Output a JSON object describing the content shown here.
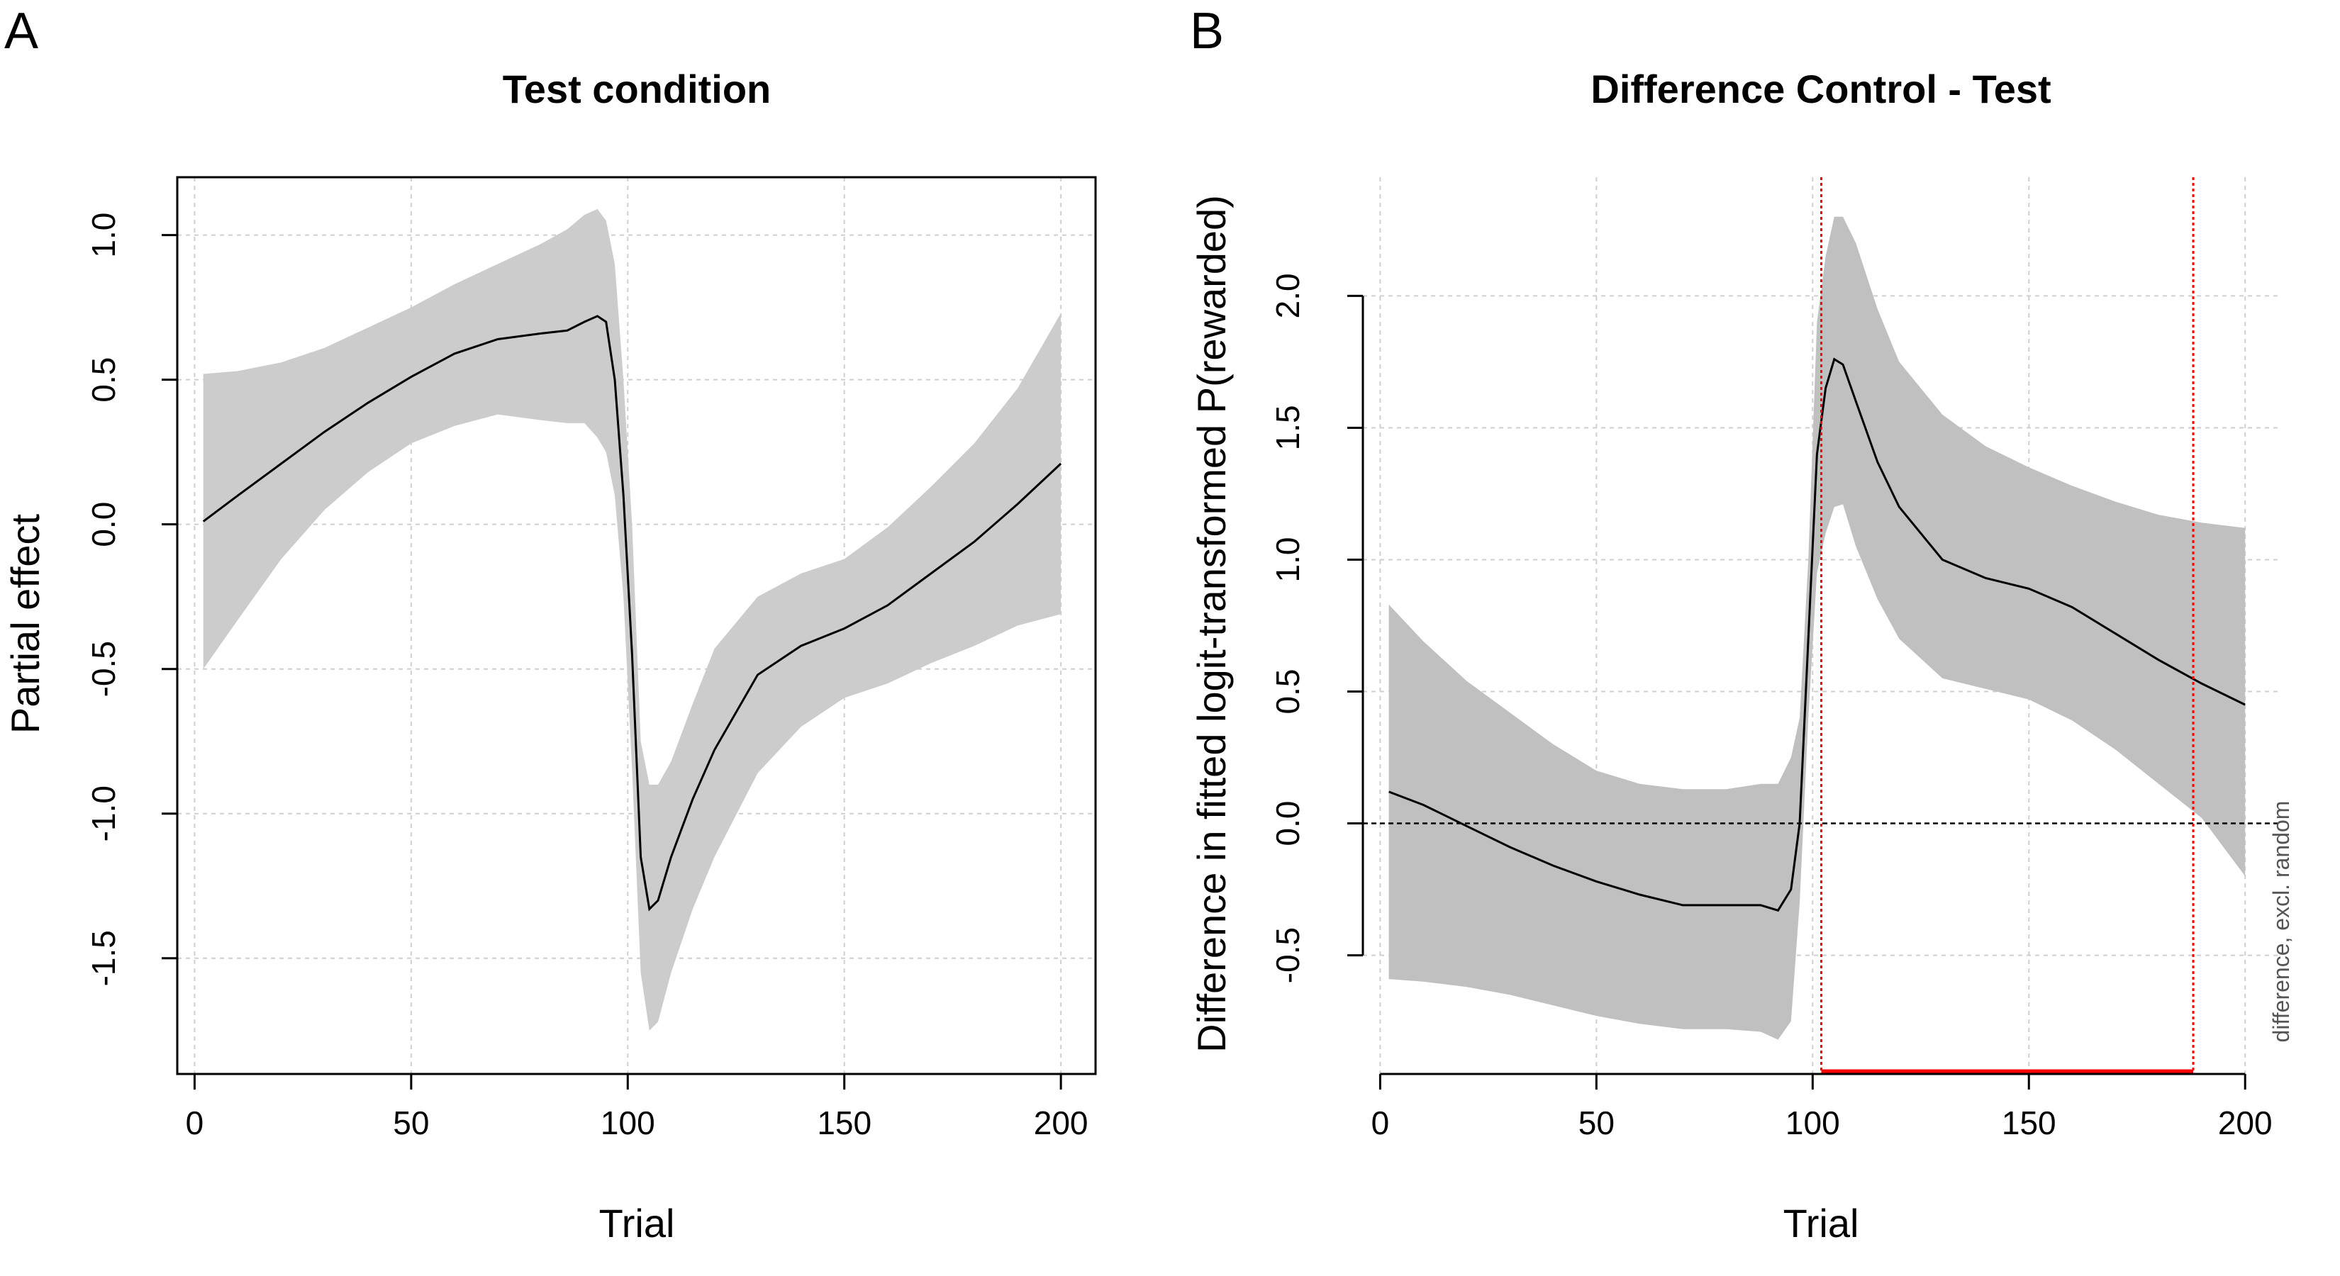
{
  "chart_data": [
    {
      "panel_letter": "A",
      "type": "line",
      "title": "Test condition",
      "xlabel": "Trial",
      "ylabel": "Partial effect",
      "xlim": [
        -4,
        208
      ],
      "ylim": [
        -1.9,
        1.2
      ],
      "xticks": [
        0,
        50,
        100,
        150,
        200
      ],
      "yticks": [
        -1.5,
        -1.0,
        -0.5,
        0.0,
        0.5,
        1.0
      ],
      "ytick_labels": [
        "-1.5",
        "-1.0",
        "-0.5",
        "0.0",
        "0.5",
        "1.0"
      ],
      "grid": true,
      "box": true,
      "band_color": "#cccccc",
      "line_color": "#000000",
      "x": [
        2,
        10,
        20,
        30,
        40,
        50,
        60,
        70,
        80,
        86,
        90,
        93,
        95,
        97,
        99,
        101,
        103,
        105,
        107,
        110,
        115,
        120,
        130,
        140,
        150,
        160,
        170,
        180,
        190,
        200
      ],
      "fit": [
        0.01,
        0.1,
        0.21,
        0.32,
        0.42,
        0.51,
        0.59,
        0.64,
        0.66,
        0.67,
        0.7,
        0.72,
        0.7,
        0.5,
        0.1,
        -0.45,
        -1.15,
        -1.33,
        -1.3,
        -1.15,
        -0.95,
        -0.78,
        -0.52,
        -0.42,
        -0.36,
        -0.28,
        -0.17,
        -0.06,
        0.07,
        0.21
      ],
      "lower": [
        -0.5,
        -0.33,
        -0.12,
        0.05,
        0.18,
        0.28,
        0.34,
        0.38,
        0.36,
        0.35,
        0.35,
        0.3,
        0.25,
        0.1,
        -0.25,
        -0.85,
        -1.55,
        -1.75,
        -1.72,
        -1.55,
        -1.33,
        -1.15,
        -0.86,
        -0.7,
        -0.6,
        -0.55,
        -0.48,
        -0.42,
        -0.35,
        -0.31
      ],
      "upper": [
        0.52,
        0.53,
        0.56,
        0.61,
        0.68,
        0.75,
        0.83,
        0.9,
        0.97,
        1.02,
        1.07,
        1.09,
        1.05,
        0.9,
        0.5,
        0.0,
        -0.75,
        -0.9,
        -0.9,
        -0.82,
        -0.62,
        -0.43,
        -0.25,
        -0.17,
        -0.12,
        -0.01,
        0.13,
        0.28,
        0.47,
        0.73
      ]
    },
    {
      "panel_letter": "B",
      "type": "line",
      "title": "Difference Control - Test",
      "xlabel": "Trial",
      "ylabel": "Difference in fitted logit-transformed P(rewarded)",
      "side_note": "difference, excl. random",
      "xlim": [
        -4,
        208
      ],
      "ylim": [
        -0.95,
        2.45
      ],
      "xticks": [
        0,
        50,
        100,
        150,
        200
      ],
      "yticks": [
        -0.5,
        0.0,
        0.5,
        1.0,
        1.5,
        2.0
      ],
      "ytick_labels": [
        "-0.5",
        "0.0",
        "0.5",
        "1.0",
        "1.5",
        "2.0"
      ],
      "grid": true,
      "box": false,
      "band_color": "#c0c0c0",
      "line_color": "#000000",
      "zero_line": 0.0,
      "significant_interval": [
        102,
        188
      ],
      "significance_color": "#ff0000",
      "x": [
        2,
        10,
        20,
        30,
        40,
        50,
        60,
        70,
        80,
        88,
        92,
        95,
        97,
        99,
        101,
        103,
        105,
        107,
        110,
        115,
        120,
        130,
        140,
        150,
        160,
        170,
        180,
        190,
        200
      ],
      "fit": [
        0.12,
        0.07,
        -0.01,
        -0.09,
        -0.16,
        -0.22,
        -0.27,
        -0.31,
        -0.31,
        -0.31,
        -0.33,
        -0.25,
        0.0,
        0.7,
        1.4,
        1.65,
        1.76,
        1.74,
        1.6,
        1.37,
        1.2,
        1.0,
        0.93,
        0.89,
        0.82,
        0.72,
        0.62,
        0.53,
        0.45
      ],
      "lower": [
        -0.59,
        -0.6,
        -0.62,
        -0.65,
        -0.69,
        -0.73,
        -0.76,
        -0.78,
        -0.78,
        -0.79,
        -0.82,
        -0.75,
        -0.3,
        0.4,
        0.95,
        1.1,
        1.2,
        1.21,
        1.05,
        0.85,
        0.7,
        0.55,
        0.51,
        0.47,
        0.39,
        0.28,
        0.15,
        0.02,
        -0.2
      ],
      "upper": [
        0.83,
        0.69,
        0.54,
        0.42,
        0.3,
        0.2,
        0.15,
        0.13,
        0.13,
        0.15,
        0.15,
        0.25,
        0.4,
        1.0,
        1.9,
        2.15,
        2.3,
        2.3,
        2.2,
        1.95,
        1.75,
        1.55,
        1.43,
        1.35,
        1.28,
        1.22,
        1.17,
        1.14,
        1.12
      ]
    }
  ]
}
